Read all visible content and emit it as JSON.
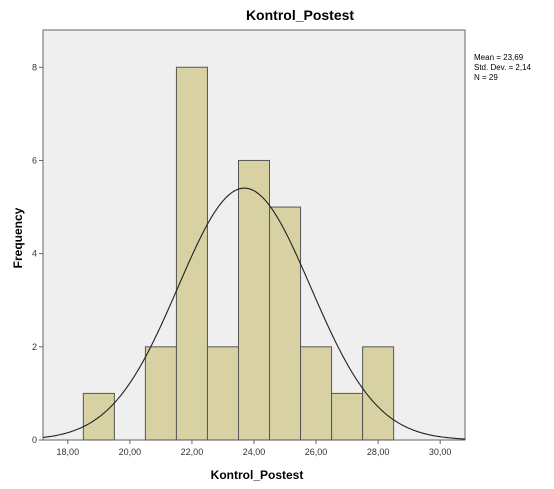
{
  "chart_data": {
    "type": "bar",
    "title": "Kontrol_Postest",
    "xlabel": "Kontrol_Postest",
    "ylabel": "Frequency",
    "x_range": [
      17.2,
      30.8
    ],
    "ylim": [
      0,
      8.8
    ],
    "x_ticks": [
      "18,00",
      "20,00",
      "22,00",
      "24,00",
      "26,00",
      "28,00",
      "30,00"
    ],
    "x_tick_values": [
      18,
      20,
      22,
      24,
      26,
      28,
      30
    ],
    "y_ticks": [
      "0",
      "2",
      "4",
      "6",
      "8"
    ],
    "y_tick_values": [
      0,
      2,
      4,
      6,
      8
    ],
    "bins": [
      {
        "x0": 18.5,
        "x1": 19.5,
        "value": 1
      },
      {
        "x0": 20.5,
        "x1": 21.5,
        "value": 2
      },
      {
        "x0": 21.5,
        "x1": 22.5,
        "value": 8
      },
      {
        "x0": 22.5,
        "x1": 23.5,
        "value": 2
      },
      {
        "x0": 23.5,
        "x1": 24.5,
        "value": 6
      },
      {
        "x0": 24.5,
        "x1": 25.5,
        "value": 5
      },
      {
        "x0": 25.5,
        "x1": 26.5,
        "value": 2
      },
      {
        "x0": 26.5,
        "x1": 27.5,
        "value": 1
      },
      {
        "x0": 27.5,
        "x1": 28.5,
        "value": 2
      }
    ],
    "normal_curve": {
      "mean": 23.69,
      "std_dev": 2.14,
      "n": 29,
      "bin_width": 1
    },
    "stats": [
      "Mean = 23,69",
      "Std. Dev. = 2,14",
      "N = 29"
    ],
    "colors": {
      "bar_fill": "#d7d1a4",
      "bar_stroke": "#555555",
      "plot_background": "#efefef",
      "curve": "#222222"
    },
    "grid": false
  }
}
